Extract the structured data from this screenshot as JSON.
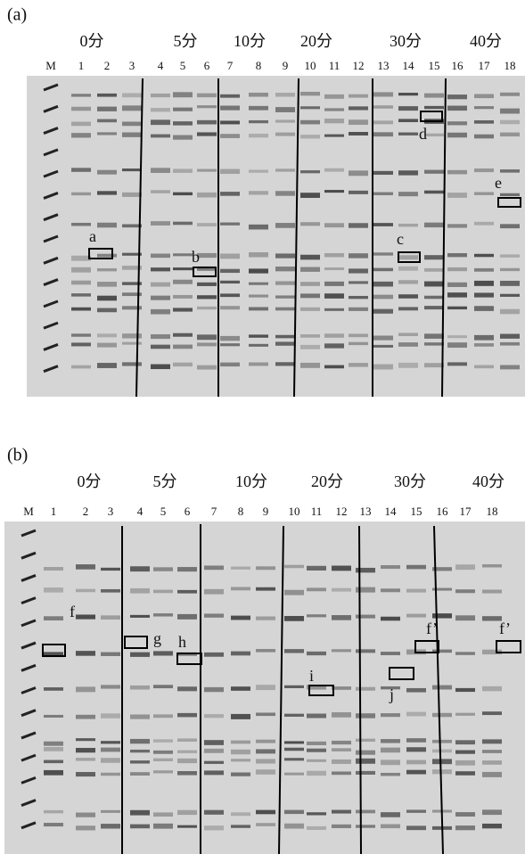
{
  "panels": [
    {
      "label": "(a)",
      "groups": [
        "0分",
        "5分",
        "10分",
        "20分",
        "30分",
        "40分"
      ],
      "lanes": [
        "M",
        "1",
        "2",
        "3",
        "4",
        "5",
        "6",
        "7",
        "8",
        "9",
        "10",
        "11",
        "12",
        "13",
        "14",
        "15",
        "16",
        "17",
        "18"
      ],
      "annotations": [
        "a",
        "b",
        "c",
        "d",
        "e"
      ]
    },
    {
      "label": "(b)",
      "groups": [
        "0分",
        "5分",
        "10分",
        "20分",
        "30分",
        "40分"
      ],
      "lanes": [
        "M",
        "1",
        "2",
        "3",
        "4",
        "5",
        "6",
        "7",
        "8",
        "9",
        "10",
        "11",
        "12",
        "13",
        "14",
        "15",
        "16",
        "17",
        "18"
      ],
      "annotations": [
        "f",
        "g",
        "h",
        "i",
        "j",
        "f’",
        "f’"
      ]
    }
  ]
}
